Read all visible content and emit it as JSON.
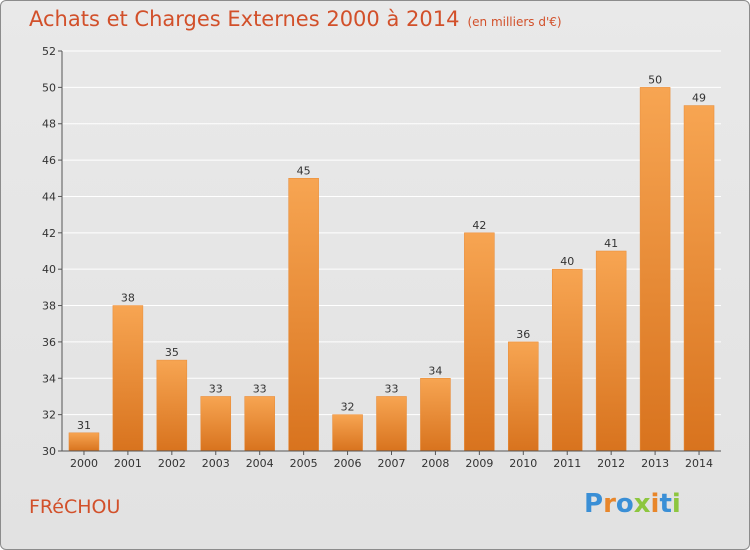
{
  "header": {
    "title": "Achats et Charges Externes 2000 à 2014",
    "subtitle": "(en milliers d'€)"
  },
  "footer": {
    "commune": "FRéCHOU",
    "logo_letters": [
      {
        "char": "P",
        "color": "#3a8fd6"
      },
      {
        "char": "r",
        "color": "#e8862a"
      },
      {
        "char": "o",
        "color": "#3a8fd6"
      },
      {
        "char": "x",
        "color": "#8dc63f"
      },
      {
        "char": "i",
        "color": "#e8862a"
      },
      {
        "char": "t",
        "color": "#3a8fd6"
      },
      {
        "char": "i",
        "color": "#8dc63f"
      }
    ]
  },
  "colors": {
    "title": "#d2502a",
    "bar_light": "#f7a552",
    "bar_dark": "#d8731e",
    "axis": "#555555",
    "grid": "#ffffff"
  },
  "chart_data": {
    "type": "bar",
    "title": "Achats et Charges Externes 2000 à 2014",
    "subtitle": "(en milliers d'€)",
    "categories": [
      "2000",
      "2001",
      "2002",
      "2003",
      "2004",
      "2005",
      "2006",
      "2007",
      "2008",
      "2009",
      "2010",
      "2011",
      "2012",
      "2013",
      "2014"
    ],
    "values": [
      31,
      38,
      35,
      33,
      33,
      45,
      32,
      33,
      34,
      42,
      36,
      40,
      41,
      50,
      49
    ],
    "ylim": [
      30,
      52
    ],
    "yticks": [
      30,
      32,
      34,
      36,
      38,
      40,
      42,
      44,
      46,
      48,
      50,
      52
    ],
    "grid": true,
    "xlabel": "",
    "ylabel": ""
  }
}
